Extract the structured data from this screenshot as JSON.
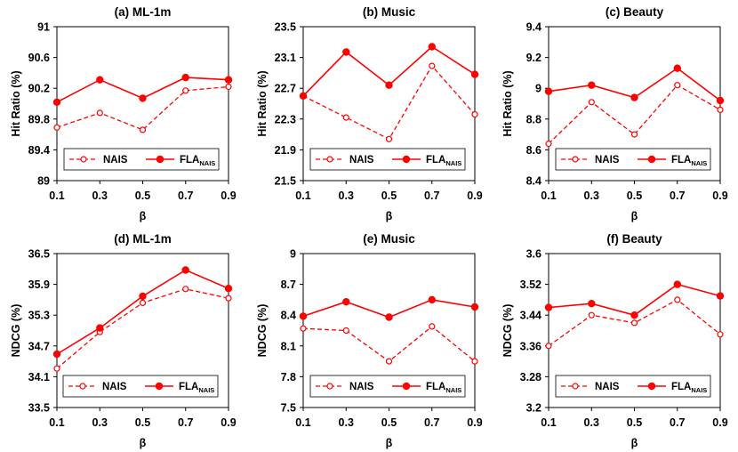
{
  "chart_data": [
    {
      "id": "a",
      "type": "line",
      "title": "(a) ML-1m",
      "xlabel": "β",
      "ylabel": "Hit Ratio (%)",
      "x": [
        0.1,
        0.3,
        0.5,
        0.7,
        0.9
      ],
      "x_tick_labels": [
        "0.1",
        "0.3",
        "0.5",
        "0.7",
        "0.9"
      ],
      "ylim": [
        89,
        91
      ],
      "y_tick_labels": [
        "89",
        "89.4",
        "89.8",
        "90.2",
        "90.6",
        "91"
      ],
      "legend_position": "lower-left",
      "series": [
        {
          "name": "NAIS",
          "label": "NAIS",
          "style": "dashed-open",
          "values": [
            89.69,
            89.88,
            89.66,
            90.17,
            90.22
          ]
        },
        {
          "name": "FLA_NAIS",
          "label": "FLA",
          "sub": "NAIS",
          "style": "solid-filled",
          "values": [
            90.02,
            90.31,
            90.07,
            90.34,
            90.31
          ]
        }
      ]
    },
    {
      "id": "b",
      "type": "line",
      "title": "(b) Music",
      "xlabel": "β",
      "ylabel": "Hit Ratio (%)",
      "x": [
        0.1,
        0.3,
        0.5,
        0.7,
        0.9
      ],
      "x_tick_labels": [
        "0.1",
        "0.3",
        "0.5",
        "0.7",
        "0.9"
      ],
      "ylim": [
        21.5,
        23.5
      ],
      "y_tick_labels": [
        "21.5",
        "21.9",
        "22.3",
        "22.7",
        "23.1",
        "23.5"
      ],
      "legend_position": "lower-left",
      "series": [
        {
          "name": "NAIS",
          "label": "NAIS",
          "style": "dashed-open",
          "values": [
            22.6,
            22.32,
            22.04,
            22.99,
            22.36
          ]
        },
        {
          "name": "FLA_NAIS",
          "label": "FLA",
          "sub": "NAIS",
          "style": "solid-filled",
          "values": [
            22.6,
            23.17,
            22.74,
            23.24,
            22.88
          ]
        }
      ]
    },
    {
      "id": "c",
      "type": "line",
      "title": "(c) Beauty",
      "xlabel": "β",
      "ylabel": "Hit Ratio (%)",
      "x": [
        0.1,
        0.3,
        0.5,
        0.7,
        0.9
      ],
      "x_tick_labels": [
        "0.1",
        "0.3",
        "0.5",
        "0.7",
        "0.9"
      ],
      "ylim": [
        8.4,
        9.4
      ],
      "y_tick_labels": [
        "8.4",
        "8.6",
        "8.8",
        "9",
        "9.2",
        "9.4"
      ],
      "legend_position": "lower-left",
      "series": [
        {
          "name": "NAIS",
          "label": "NAIS",
          "style": "dashed-open",
          "values": [
            8.64,
            8.91,
            8.7,
            9.02,
            8.86
          ]
        },
        {
          "name": "FLA_NAIS",
          "label": "FLA",
          "sub": "NAIS",
          "style": "solid-filled",
          "values": [
            8.98,
            9.02,
            8.94,
            9.13,
            8.92
          ]
        }
      ]
    },
    {
      "id": "d",
      "type": "line",
      "title": "(d) ML-1m",
      "xlabel": "β",
      "ylabel": "NDCG (%)",
      "x": [
        0.1,
        0.3,
        0.5,
        0.7,
        0.9
      ],
      "x_tick_labels": [
        "0.1",
        "0.3",
        "0.5",
        "0.7",
        "0.9"
      ],
      "ylim": [
        33.5,
        36.5
      ],
      "y_tick_labels": [
        "33.5",
        "34.1",
        "34.7",
        "35.3",
        "35.9",
        "36.5"
      ],
      "legend_position": "lower-right",
      "series": [
        {
          "name": "NAIS",
          "label": "NAIS",
          "style": "dashed-open",
          "values": [
            34.26,
            34.97,
            35.54,
            35.81,
            35.63
          ]
        },
        {
          "name": "FLA_NAIS",
          "label": "FLA",
          "sub": "NAIS",
          "style": "solid-filled",
          "values": [
            34.54,
            35.05,
            35.67,
            36.18,
            35.82
          ]
        }
      ]
    },
    {
      "id": "e",
      "type": "line",
      "title": "(e) Music",
      "xlabel": "β",
      "ylabel": "NDCG (%)",
      "x": [
        0.1,
        0.3,
        0.5,
        0.7,
        0.9
      ],
      "x_tick_labels": [
        "0.1",
        "0.3",
        "0.5",
        "0.7",
        "0.9"
      ],
      "ylim": [
        7.5,
        9
      ],
      "y_tick_labels": [
        "7.5",
        "7.8",
        "8.1",
        "8.4",
        "8.7",
        "9"
      ],
      "legend_position": "lower-left",
      "series": [
        {
          "name": "NAIS",
          "label": "NAIS",
          "style": "dashed-open",
          "values": [
            8.27,
            8.25,
            7.95,
            8.29,
            7.95
          ]
        },
        {
          "name": "FLA_NAIS",
          "label": "FLA",
          "sub": "NAIS",
          "style": "solid-filled",
          "values": [
            8.39,
            8.53,
            8.38,
            8.55,
            8.48
          ]
        }
      ]
    },
    {
      "id": "f",
      "type": "line",
      "title": "(f) Beauty",
      "xlabel": "β",
      "ylabel": "NDCG (%)",
      "x": [
        0.1,
        0.3,
        0.5,
        0.7,
        0.9
      ],
      "x_tick_labels": [
        "0.1",
        "0.3",
        "0.5",
        "0.7",
        "0.9"
      ],
      "ylim": [
        3.2,
        3.6
      ],
      "y_tick_labels": [
        "3.2",
        "3.28",
        "3.36",
        "3.44",
        "3.52",
        "3.6"
      ],
      "legend_position": "lower-left",
      "series": [
        {
          "name": "NAIS",
          "label": "NAIS",
          "style": "dashed-open",
          "values": [
            3.36,
            3.44,
            3.42,
            3.48,
            3.39
          ]
        },
        {
          "name": "FLA_NAIS",
          "label": "FLA",
          "sub": "NAIS",
          "style": "solid-filled",
          "values": [
            3.46,
            3.47,
            3.44,
            3.52,
            3.49
          ]
        }
      ]
    }
  ],
  "colors": {
    "series": "#ff0000",
    "axis": "#000000",
    "background": "#ffffff"
  }
}
